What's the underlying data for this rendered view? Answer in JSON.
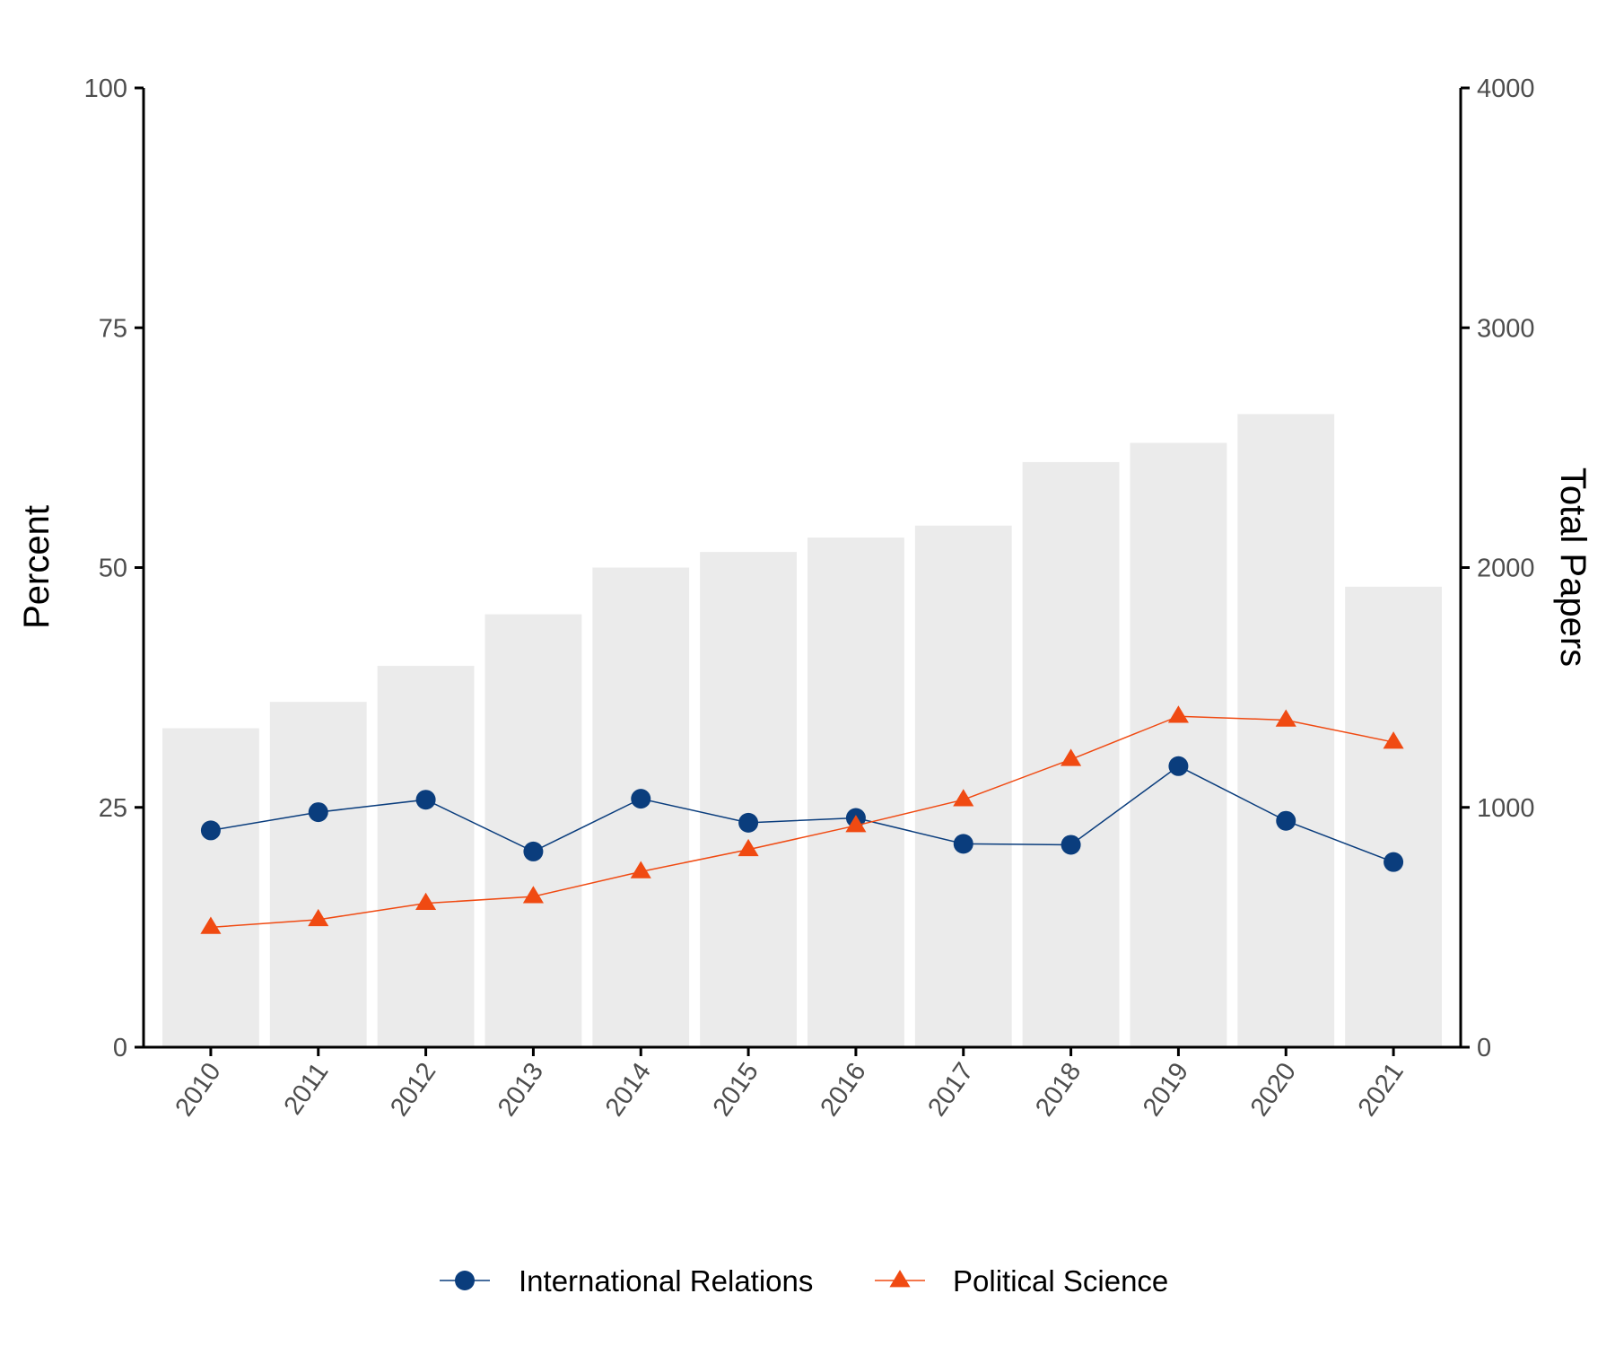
{
  "chart_data": {
    "type": "bar+line",
    "categories": [
      "2010",
      "2011",
      "2012",
      "2013",
      "2014",
      "2015",
      "2016",
      "2017",
      "2018",
      "2019",
      "2020",
      "2021"
    ],
    "bars": {
      "axis": "right",
      "values": [
        1330,
        1440,
        1590,
        1805,
        2000,
        2065,
        2125,
        2175,
        2440,
        2520,
        2640,
        1920
      ],
      "color": "#ebebeb"
    },
    "series": [
      {
        "name": "International Relations",
        "axis": "left",
        "marker": "circle",
        "color": "#0a3d7d",
        "values": [
          22.6,
          24.5,
          25.8,
          20.4,
          25.9,
          23.4,
          23.9,
          21.2,
          21.1,
          29.3,
          23.6,
          19.3
        ]
      },
      {
        "name": "Political Science",
        "axis": "left",
        "marker": "triangle",
        "color": "#f04a12",
        "values": [
          12.5,
          13.3,
          15.0,
          15.7,
          18.3,
          20.6,
          23.1,
          25.8,
          30.0,
          34.5,
          34.1,
          31.8
        ]
      }
    ],
    "ylabel": "Percent",
    "y2label": "Total Papers",
    "ylim": [
      0,
      100
    ],
    "y2lim": [
      0,
      4000
    ],
    "yticks": [
      "0",
      "25",
      "50",
      "75",
      "100"
    ],
    "y2ticks": [
      "0",
      "1000",
      "2000",
      "3000",
      "4000"
    ],
    "grid": false,
    "legend": "bottom"
  }
}
